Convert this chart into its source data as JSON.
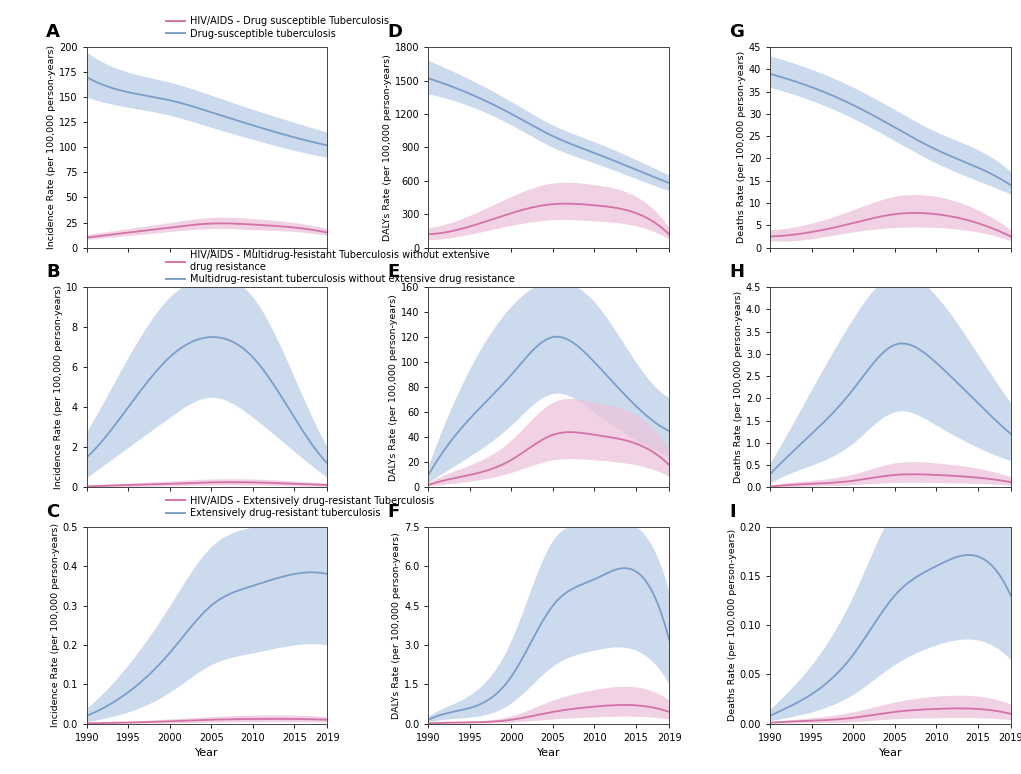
{
  "years": [
    1990,
    1995,
    2000,
    2005,
    2010,
    2015,
    2019
  ],
  "blue_color": "#7B9EC9",
  "blue_fill": "#C4D4EA",
  "pink_color": "#D472A8",
  "pink_fill": "#ECC4DC",
  "A": {
    "ylabel": "Incidence Rate (per 100,000 person-years)",
    "ylim": [
      0,
      200
    ],
    "yticks": [
      0.0,
      25.0,
      50.0,
      75.0,
      100.0,
      125.0,
      150.0,
      175.0,
      200.0
    ],
    "blue_mean": [
      170,
      155,
      147,
      135,
      122,
      110,
      102
    ],
    "blue_lo": [
      150,
      140,
      132,
      120,
      108,
      97,
      90
    ],
    "blue_hi": [
      195,
      175,
      165,
      152,
      138,
      125,
      115
    ],
    "pink_mean": [
      10,
      15,
      20,
      24,
      23,
      20,
      15
    ],
    "pink_lo": [
      8,
      12,
      16,
      19,
      18,
      16,
      12
    ],
    "pink_hi": [
      13,
      19,
      25,
      30,
      29,
      25,
      19
    ],
    "legend1": "HIV/AIDS - Drug susceptible Tuberculosis",
    "legend2": "Drug-susceptible tuberculosis"
  },
  "B": {
    "ylabel": "Incidence Rate (per 100,000 person-years)",
    "ylim": [
      0,
      10
    ],
    "yticks": [
      0.0,
      2.0,
      4.0,
      6.0,
      8.0,
      10.0
    ],
    "blue_mean": [
      1.5,
      4.0,
      6.5,
      7.5,
      6.5,
      3.5,
      1.2
    ],
    "blue_lo": [
      0.5,
      2.0,
      3.5,
      4.5,
      3.5,
      1.8,
      0.5
    ],
    "blue_hi": [
      2.8,
      6.5,
      9.5,
      10.5,
      9.5,
      5.5,
      2.0
    ],
    "pink_mean": [
      0.05,
      0.12,
      0.18,
      0.25,
      0.25,
      0.18,
      0.12
    ],
    "pink_lo": [
      0.02,
      0.05,
      0.08,
      0.12,
      0.12,
      0.08,
      0.05
    ],
    "pink_hi": [
      0.1,
      0.22,
      0.32,
      0.42,
      0.42,
      0.32,
      0.22
    ],
    "legend1": "HIV/AIDS - Multidrug-resistant Tuberculosis without extensive\ndrug resistance",
    "legend2": "Multidrug-resistant tuberculosis without extensive drug resistance"
  },
  "C": {
    "ylabel": "Incidence Rate (per 100,000 person-years)",
    "ylim": [
      0,
      0.5
    ],
    "yticks": [
      0.0,
      0.1,
      0.2,
      0.3,
      0.4,
      0.5
    ],
    "blue_mean": [
      0.02,
      0.08,
      0.18,
      0.3,
      0.35,
      0.38,
      0.38
    ],
    "blue_lo": [
      0.005,
      0.03,
      0.08,
      0.15,
      0.18,
      0.2,
      0.2
    ],
    "blue_hi": [
      0.04,
      0.15,
      0.3,
      0.45,
      0.5,
      0.52,
      0.5
    ],
    "pink_mean": [
      0.001,
      0.003,
      0.006,
      0.01,
      0.012,
      0.012,
      0.01
    ],
    "pink_lo": [
      0.0005,
      0.001,
      0.002,
      0.004,
      0.005,
      0.005,
      0.004
    ],
    "pink_hi": [
      0.002,
      0.006,
      0.012,
      0.018,
      0.022,
      0.022,
      0.018
    ],
    "legend1": "HIV/AIDS - Extensively drug-resistant Tuberculosis",
    "legend2": "Extensively drug-resistant tuberculosis"
  },
  "D": {
    "ylabel": "DALYs Rate (per 100,000 person-years)",
    "ylim": [
      0,
      1800
    ],
    "yticks": [
      0.0,
      300.0,
      600.0,
      900.0,
      1200.0,
      1500.0,
      1800.0
    ],
    "blue_mean": [
      1520,
      1380,
      1200,
      1000,
      850,
      700,
      580
    ],
    "blue_lo": [
      1380,
      1270,
      1100,
      900,
      760,
      620,
      510
    ],
    "blue_hi": [
      1680,
      1510,
      1310,
      1100,
      950,
      790,
      650
    ],
    "pink_mean": [
      120,
      190,
      310,
      390,
      380,
      310,
      120
    ],
    "pink_lo": [
      70,
      120,
      200,
      250,
      240,
      195,
      75
    ],
    "pink_hi": [
      180,
      290,
      460,
      580,
      565,
      460,
      180
    ]
  },
  "E": {
    "ylabel": "DALYs Rate (per 100,000 person-years)",
    "ylim": [
      0,
      160
    ],
    "yticks": [
      0.0,
      20.0,
      40.0,
      60.0,
      80.0,
      100.0,
      120.0,
      140.0,
      160.0
    ],
    "blue_mean": [
      10,
      55,
      90,
      120,
      100,
      65,
      45
    ],
    "blue_lo": [
      4,
      25,
      50,
      75,
      60,
      38,
      25
    ],
    "blue_hi": [
      18,
      95,
      145,
      165,
      148,
      100,
      72
    ],
    "pink_mean": [
      2,
      10,
      22,
      42,
      42,
      35,
      18
    ],
    "pink_lo": [
      1,
      5,
      12,
      22,
      22,
      18,
      9
    ],
    "pink_hi": [
      4,
      18,
      38,
      68,
      68,
      58,
      30
    ]
  },
  "F": {
    "ylabel": "DALYs Rate (per 100,000 person-years)",
    "ylim": [
      0,
      7.5
    ],
    "yticks": [
      0.0,
      1.5,
      3.0,
      4.5,
      6.0,
      7.5
    ],
    "blue_mean": [
      0.15,
      0.6,
      1.8,
      4.5,
      5.5,
      5.8,
      3.2
    ],
    "blue_lo": [
      0.05,
      0.25,
      0.8,
      2.2,
      2.8,
      2.8,
      1.5
    ],
    "blue_hi": [
      0.3,
      1.1,
      3.2,
      7.0,
      7.5,
      7.5,
      5.0
    ],
    "pink_mean": [
      0.01,
      0.05,
      0.15,
      0.45,
      0.65,
      0.7,
      0.45
    ],
    "pink_lo": [
      0.003,
      0.02,
      0.06,
      0.18,
      0.26,
      0.28,
      0.18
    ],
    "pink_hi": [
      0.02,
      0.1,
      0.3,
      0.9,
      1.3,
      1.4,
      0.9
    ]
  },
  "G": {
    "ylabel": "Deaths Rate (per 100,000 person-years)",
    "ylim": [
      0,
      45
    ],
    "yticks": [
      0.0,
      5.0,
      10.0,
      15.0,
      20.0,
      25.0,
      30.0,
      35.0,
      40.0,
      45.0
    ],
    "blue_mean": [
      39,
      36,
      32,
      27,
      22,
      18,
      14
    ],
    "blue_lo": [
      36,
      33,
      29,
      24,
      19,
      15,
      12
    ],
    "blue_hi": [
      43,
      40,
      36,
      31,
      26,
      22,
      17
    ],
    "pink_mean": [
      2.5,
      3.5,
      5.5,
      7.5,
      7.5,
      5.5,
      2.5
    ],
    "pink_lo": [
      1.5,
      2.0,
      3.5,
      4.5,
      4.5,
      3.5,
      1.5
    ],
    "pink_hi": [
      4.0,
      5.5,
      8.5,
      11.5,
      11.5,
      8.5,
      4.0
    ]
  },
  "H": {
    "ylabel": "Deaths Rate (per 100,000 person-years)",
    "ylim": [
      0,
      4.5
    ],
    "yticks": [
      0.0,
      0.5,
      1.0,
      1.5,
      2.0,
      2.5,
      3.0,
      3.5,
      4.0,
      4.5
    ],
    "blue_mean": [
      0.3,
      1.2,
      2.2,
      3.2,
      2.8,
      1.9,
      1.2
    ],
    "blue_lo": [
      0.1,
      0.5,
      1.0,
      1.7,
      1.4,
      0.9,
      0.6
    ],
    "blue_hi": [
      0.55,
      2.2,
      3.8,
      4.8,
      4.3,
      3.0,
      1.9
    ],
    "pink_mean": [
      0.02,
      0.08,
      0.15,
      0.28,
      0.28,
      0.22,
      0.12
    ],
    "pink_lo": [
      0.008,
      0.03,
      0.06,
      0.11,
      0.11,
      0.09,
      0.05
    ],
    "pink_hi": [
      0.04,
      0.16,
      0.3,
      0.55,
      0.55,
      0.43,
      0.24
    ]
  },
  "I": {
    "ylabel": "Deaths Rate (per 100,000 person-years)",
    "ylim": [
      0,
      0.2
    ],
    "yticks": [
      0.0,
      0.05,
      0.1,
      0.15,
      0.2
    ],
    "blue_mean": [
      0.008,
      0.03,
      0.07,
      0.13,
      0.16,
      0.17,
      0.13
    ],
    "blue_lo": [
      0.003,
      0.012,
      0.03,
      0.06,
      0.08,
      0.085,
      0.065
    ],
    "blue_hi": [
      0.015,
      0.06,
      0.13,
      0.22,
      0.26,
      0.27,
      0.21
    ],
    "pink_mean": [
      0.001,
      0.003,
      0.006,
      0.012,
      0.015,
      0.015,
      0.01
    ],
    "pink_lo": [
      0.0004,
      0.001,
      0.002,
      0.005,
      0.006,
      0.006,
      0.004
    ],
    "pink_hi": [
      0.002,
      0.006,
      0.012,
      0.022,
      0.028,
      0.028,
      0.02
    ]
  }
}
